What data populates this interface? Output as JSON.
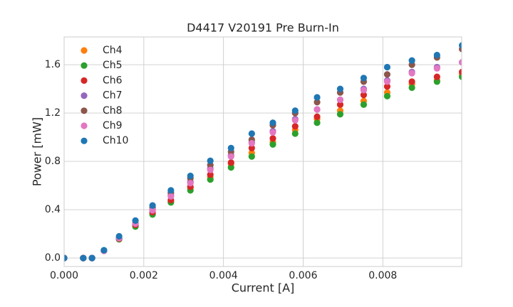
{
  "chart_data": {
    "type": "scatter",
    "title": "D4417 V20191 Pre Burn-In",
    "x_label": "Current [A]",
    "y_label": "Power [mW]",
    "x": [
      0,
      0.00048,
      0.0007,
      0.001,
      0.00138,
      0.00179,
      0.00222,
      0.00268,
      0.00317,
      0.00367,
      0.00419,
      0.00471,
      0.00524,
      0.0058,
      0.00635,
      0.00693,
      0.00752,
      0.00811,
      0.00873,
      0.00936,
      0.00999
    ],
    "series": [
      {
        "name": "Ch4",
        "color": "#ff7f0e",
        "values": [
          0,
          0,
          0,
          0.06,
          0.16,
          0.27,
          0.37,
          0.47,
          0.58,
          0.67,
          0.78,
          0.87,
          0.96,
          1.06,
          1.15,
          1.22,
          1.3,
          1.37,
          1.44,
          1.47,
          1.52
        ]
      },
      {
        "name": "Ch5",
        "color": "#2ca02c",
        "values": [
          0,
          0,
          0,
          0.06,
          0.155,
          0.26,
          0.36,
          0.46,
          0.56,
          0.65,
          0.75,
          0.84,
          0.94,
          1.03,
          1.12,
          1.19,
          1.27,
          1.34,
          1.41,
          1.46,
          1.5
        ]
      },
      {
        "name": "Ch6",
        "color": "#d62728",
        "values": [
          0,
          0,
          0,
          0.06,
          0.16,
          0.275,
          0.38,
          0.48,
          0.59,
          0.69,
          0.79,
          0.91,
          0.99,
          1.09,
          1.17,
          1.27,
          1.35,
          1.42,
          1.46,
          1.5,
          1.54
        ]
      },
      {
        "name": "Ch7",
        "color": "#9467bd",
        "values": [
          0,
          0,
          0,
          0.06,
          0.165,
          0.285,
          0.4,
          0.52,
          0.63,
          0.74,
          0.85,
          0.96,
          1.05,
          1.15,
          1.23,
          1.31,
          1.4,
          1.47,
          1.54,
          1.58,
          1.62
        ]
      },
      {
        "name": "Ch8",
        "color": "#8c564b",
        "values": [
          0,
          0,
          0,
          0.06,
          0.165,
          0.29,
          0.42,
          0.54,
          0.66,
          0.77,
          0.88,
          0.98,
          1.1,
          1.2,
          1.29,
          1.37,
          1.46,
          1.52,
          1.6,
          1.66,
          1.73
        ]
      },
      {
        "name": "Ch9",
        "color": "#e377c2",
        "values": [
          0,
          0,
          0,
          0.06,
          0.165,
          0.285,
          0.395,
          0.51,
          0.62,
          0.73,
          0.84,
          0.95,
          1.04,
          1.14,
          1.23,
          1.31,
          1.39,
          1.46,
          1.53,
          1.57,
          1.62
        ]
      },
      {
        "name": "Ch10",
        "color": "#1f77b4",
        "values": [
          0,
          0,
          0,
          0.065,
          0.18,
          0.31,
          0.435,
          0.56,
          0.68,
          0.805,
          0.91,
          1.03,
          1.12,
          1.22,
          1.33,
          1.4,
          1.49,
          1.58,
          1.635,
          1.68,
          1.76
        ]
      }
    ],
    "xlim": [
      0,
      0.00998
    ],
    "ylim": [
      -0.07,
      1.83
    ],
    "xticks": [
      {
        "value": 0,
        "label": "0.000"
      },
      {
        "value": 0.002,
        "label": "0.002"
      },
      {
        "value": 0.004,
        "label": "0.004"
      },
      {
        "value": 0.006,
        "label": "0.006"
      },
      {
        "value": 0.008,
        "label": "0.008"
      }
    ],
    "yticks": [
      {
        "value": 0,
        "label": "0.0"
      },
      0.4,
      0.8,
      1.2,
      1.6
    ],
    "grid": true,
    "legend": "upper-left"
  }
}
